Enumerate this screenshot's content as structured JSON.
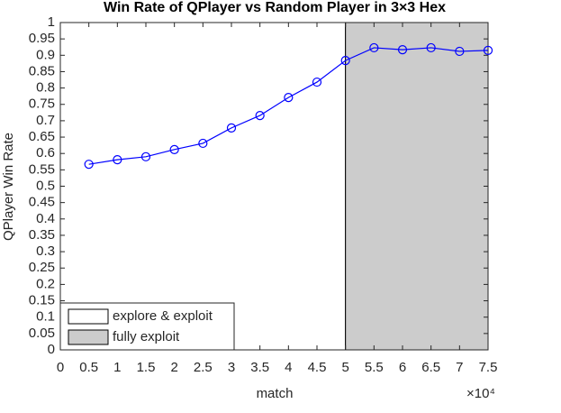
{
  "chart_data": {
    "type": "line",
    "title": "Win Rate of QPlayer vs Random Player in 3×3 Hex",
    "x_label": "match",
    "y_label": "QPlayer Win Rate",
    "x_exponent_label": "×10⁴",
    "x": [
      0.5,
      1,
      1.5,
      2,
      2.5,
      3,
      3.5,
      4,
      4.5,
      5,
      5.5,
      6,
      6.5,
      7,
      7.5
    ],
    "series": [
      {
        "color": "#0000ff",
        "marker": "circle",
        "values": [
          0.567,
          0.581,
          0.59,
          0.612,
          0.631,
          0.678,
          0.716,
          0.771,
          0.818,
          0.884,
          0.923,
          0.917,
          0.923,
          0.912,
          0.915
        ]
      }
    ],
    "regions": [
      {
        "name": "explore & exploit",
        "color": "#ffffff",
        "xlim": [
          0,
          5
        ]
      },
      {
        "name": "fully exploit",
        "color": "#cccccc",
        "xlim": [
          5,
          7.5
        ]
      }
    ],
    "legend": "lower-left",
    "xlim": [
      0,
      7.5
    ],
    "xticks": [
      0,
      0.5,
      1,
      1.5,
      2,
      2.5,
      3,
      3.5,
      4,
      4.5,
      5,
      5.5,
      6,
      6.5,
      7,
      7.5
    ],
    "ylim": [
      0,
      1
    ],
    "yticks": [
      0,
      0.05,
      0.1,
      0.15,
      0.2,
      0.25,
      0.3,
      0.35,
      0.4,
      0.45,
      0.5,
      0.55,
      0.6,
      0.65,
      0.7,
      0.75,
      0.8,
      0.85,
      0.9,
      0.95,
      1
    ]
  }
}
